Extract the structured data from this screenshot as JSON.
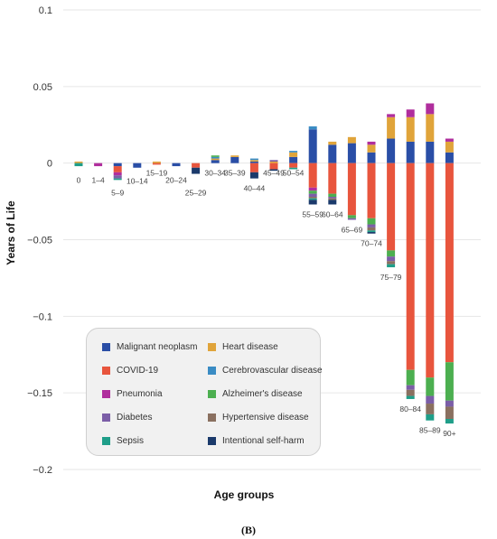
{
  "caption": "(B)",
  "chart_data": {
    "type": "bar",
    "stacked": true,
    "xlabel": "Age groups",
    "ylabel": "Years of Life",
    "ylim": [
      -0.2,
      0.1
    ],
    "yticks": [
      0.1,
      0.05,
      0,
      -0.05,
      -0.1,
      -0.15,
      -0.2
    ],
    "ytick_labels": [
      "0.1",
      "0.05",
      "0",
      "−0.05",
      "−0.1",
      "−0.15",
      "−0.2"
    ],
    "grid": true,
    "legend_position": "bottom-left",
    "categories": [
      "0",
      "1–4",
      "5–9",
      "10–14",
      "15–19",
      "20–24",
      "25–29",
      "30–34",
      "35–39",
      "40–44",
      "45–49",
      "50–54",
      "55–59",
      "60–64",
      "65–69",
      "70–74",
      "75–79",
      "80–84",
      "85–89",
      "90+"
    ],
    "series": [
      {
        "name": "Malignant neoplasm",
        "color": "#2a4ea6",
        "values": [
          0,
          0,
          -0.002,
          -0.003,
          0,
          -0.002,
          0,
          0.002,
          0.004,
          0.001,
          0,
          0.004,
          0.022,
          0.012,
          0.013,
          0.007,
          0.016,
          0.014,
          0.014,
          0.007
        ]
      },
      {
        "name": "Heart disease",
        "color": "#e0a43a",
        "values": [
          0.001,
          0,
          0,
          0,
          0.001,
          0,
          0,
          0.001,
          0.001,
          0.001,
          0.001,
          0.003,
          0,
          0.002,
          0.004,
          0.005,
          0.014,
          0.016,
          0.018,
          0.007
        ]
      },
      {
        "name": "COVID-19",
        "color": "#e8553d",
        "values": [
          0,
          0,
          -0.004,
          0,
          -0.001,
          0,
          -0.003,
          0,
          0,
          -0.006,
          -0.004,
          -0.003,
          -0.016,
          -0.02,
          -0.034,
          -0.036,
          -0.057,
          -0.135,
          -0.14,
          -0.13
        ]
      },
      {
        "name": "Cerebrovascular disease",
        "color": "#3a8cc4",
        "values": [
          0,
          0,
          0,
          0,
          0,
          0,
          0,
          0.001,
          0,
          0.001,
          0,
          0.001,
          0.002,
          0,
          0,
          0,
          0,
          0,
          0,
          0
        ]
      },
      {
        "name": "Pneumonia",
        "color": "#b02e9d",
        "values": [
          0,
          -0.002,
          -0.002,
          0,
          0,
          0,
          0,
          0,
          0,
          0,
          0,
          0,
          -0.002,
          0,
          0,
          0.002,
          0.002,
          0.005,
          0.007,
          0.002
        ]
      },
      {
        "name": "Alzheimer's disease",
        "color": "#4caf50",
        "values": [
          0,
          0,
          0,
          0,
          0,
          0,
          0,
          0.001,
          0,
          0,
          0,
          0,
          -0.002,
          -0.002,
          -0.002,
          -0.004,
          -0.004,
          -0.01,
          -0.012,
          -0.025
        ]
      },
      {
        "name": "Diabetes",
        "color": "#7b5ea7",
        "values": [
          0,
          0,
          -0.002,
          0,
          0,
          0,
          0,
          0,
          0,
          0,
          0.001,
          0,
          -0.002,
          -0.001,
          -0.001,
          -0.002,
          -0.003,
          -0.003,
          -0.005,
          -0.004
        ]
      },
      {
        "name": "Hypertensive disease",
        "color": "#8a7060",
        "values": [
          0,
          0,
          0,
          0,
          0,
          0,
          0,
          0,
          0,
          0,
          0,
          0,
          -0.001,
          -0.001,
          0,
          -0.002,
          -0.002,
          -0.004,
          -0.007,
          -0.008
        ]
      },
      {
        "name": "Sepsis",
        "color": "#1f9e89",
        "values": [
          -0.002,
          0,
          -0.001,
          0,
          0,
          0,
          0,
          0,
          0,
          0,
          0,
          -0.001,
          -0.001,
          0,
          0,
          -0.001,
          -0.002,
          -0.002,
          -0.004,
          -0.003
        ]
      },
      {
        "name": "Intentional self-harm",
        "color": "#1b3a6b",
        "values": [
          0,
          0,
          0,
          0,
          0,
          0,
          -0.004,
          0,
          0,
          -0.004,
          -0.001,
          0,
          -0.003,
          -0.003,
          0,
          -0.001,
          0,
          0,
          0,
          0
        ]
      }
    ]
  },
  "legend": {
    "items": [
      {
        "label": "Malignant neoplasm",
        "color": "#2a4ea6"
      },
      {
        "label": "Heart disease",
        "color": "#e0a43a"
      },
      {
        "label": "COVID-19",
        "color": "#e8553d"
      },
      {
        "label": "Cerebrovascular disease",
        "color": "#3a8cc4"
      },
      {
        "label": "Pneumonia",
        "color": "#b02e9d"
      },
      {
        "label": "Alzheimer's disease",
        "color": "#4caf50"
      },
      {
        "label": "Diabetes",
        "color": "#7b5ea7"
      },
      {
        "label": "Hypertensive disease",
        "color": "#8a7060"
      },
      {
        "label": "Sepsis",
        "color": "#1f9e89"
      },
      {
        "label": "Intentional self-harm",
        "color": "#1b3a6b"
      }
    ]
  }
}
